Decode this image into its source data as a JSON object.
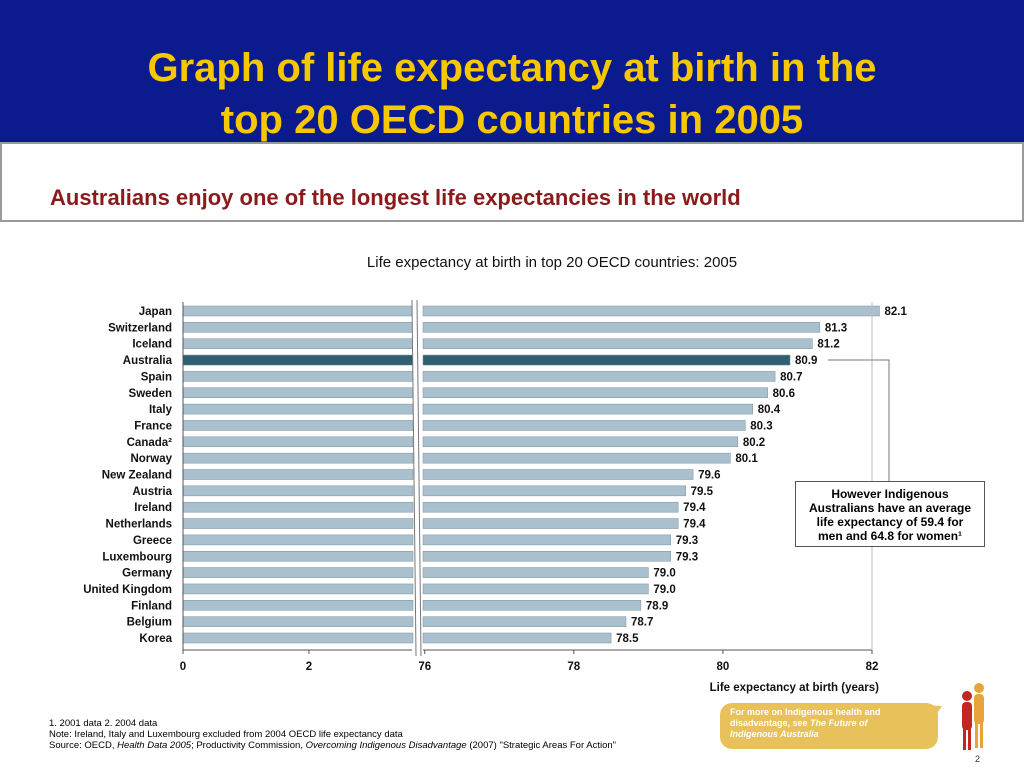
{
  "slide": {
    "title_line1": "Graph of life expectancy at birth in the",
    "title_line2": "top 20 OECD countries in 2005",
    "headline": "Australians enjoy one of the longest life expectancies in the world",
    "callout_line1": "However Indigenous",
    "callout_line2": "Australians have an average",
    "callout_line3": "life expectancy of 59.4 for",
    "callout_line4": "men and 64.8 for women¹",
    "note1": "1. 2001 data   2. 2004 data",
    "note2": "Note: Ireland, Italy and Luxembourg excluded from 2004 OECD life expectancy data",
    "source_prefix": "Source: OECD, ",
    "source_italic1": "Health Data 2005",
    "source_mid": "; Productivity Commission, ",
    "source_italic2": "Overcoming Indigenous Disadvantage",
    "source_suffix": " (2007) \"Strategic Areas For Action\"",
    "bubble_text1": "For more on Indigenous health and",
    "bubble_text2": "disadvantage, see ",
    "bubble_italic1": "The Future of",
    "bubble_italic2": "Indigenous Australia",
    "page_number": "2"
  },
  "colors": {
    "banner": "#0b1a8c",
    "title": "#f7c800",
    "headline": "#8b1a1a",
    "bar": "#a9c1cf",
    "highlight_bar": "#2f5d71",
    "bubble": "#e8c15a"
  },
  "chart_data": {
    "type": "bar",
    "orientation": "horizontal",
    "title": "Life expectancy at birth in top 20 OECD countries: 2005",
    "xlabel": "Life expectancy at birth (years)",
    "categories": [
      "Japan",
      "Switzerland",
      "Iceland",
      "Australia",
      "Spain",
      "Sweden",
      "Italy",
      "France",
      "Canada²",
      "Norway",
      "New Zealand",
      "Austria",
      "Ireland",
      "Netherlands",
      "Greece",
      "Luxembourg",
      "Germany",
      "United Kingdom",
      "Finland",
      "Belgium",
      "Korea"
    ],
    "values": [
      82.1,
      81.3,
      81.2,
      80.9,
      80.7,
      80.6,
      80.4,
      80.3,
      80.2,
      80.1,
      79.6,
      79.5,
      79.4,
      79.4,
      79.3,
      79.3,
      79.0,
      79.0,
      78.9,
      78.7,
      78.5
    ],
    "value_labels": [
      "82.1",
      "81.3",
      "81.2",
      "80.9",
      "80.7",
      "80.6",
      "80.4",
      "80.3",
      "80.2",
      "80.1",
      "79.6",
      "79.5",
      "79.4",
      "79.4",
      "79.3",
      "79.3",
      "79.0",
      "79.0",
      "78.9",
      "78.7",
      "78.5"
    ],
    "highlight": "Australia",
    "axis_break": true,
    "xlim_lower_segment": [
      0,
      3.7
    ],
    "xlim_upper_segment": [
      75.95,
      82
    ],
    "ticks_lower": [
      "0",
      "2"
    ],
    "ticks_upper": [
      "76",
      "78",
      "80",
      "82"
    ],
    "grid": false,
    "legend": "none"
  }
}
